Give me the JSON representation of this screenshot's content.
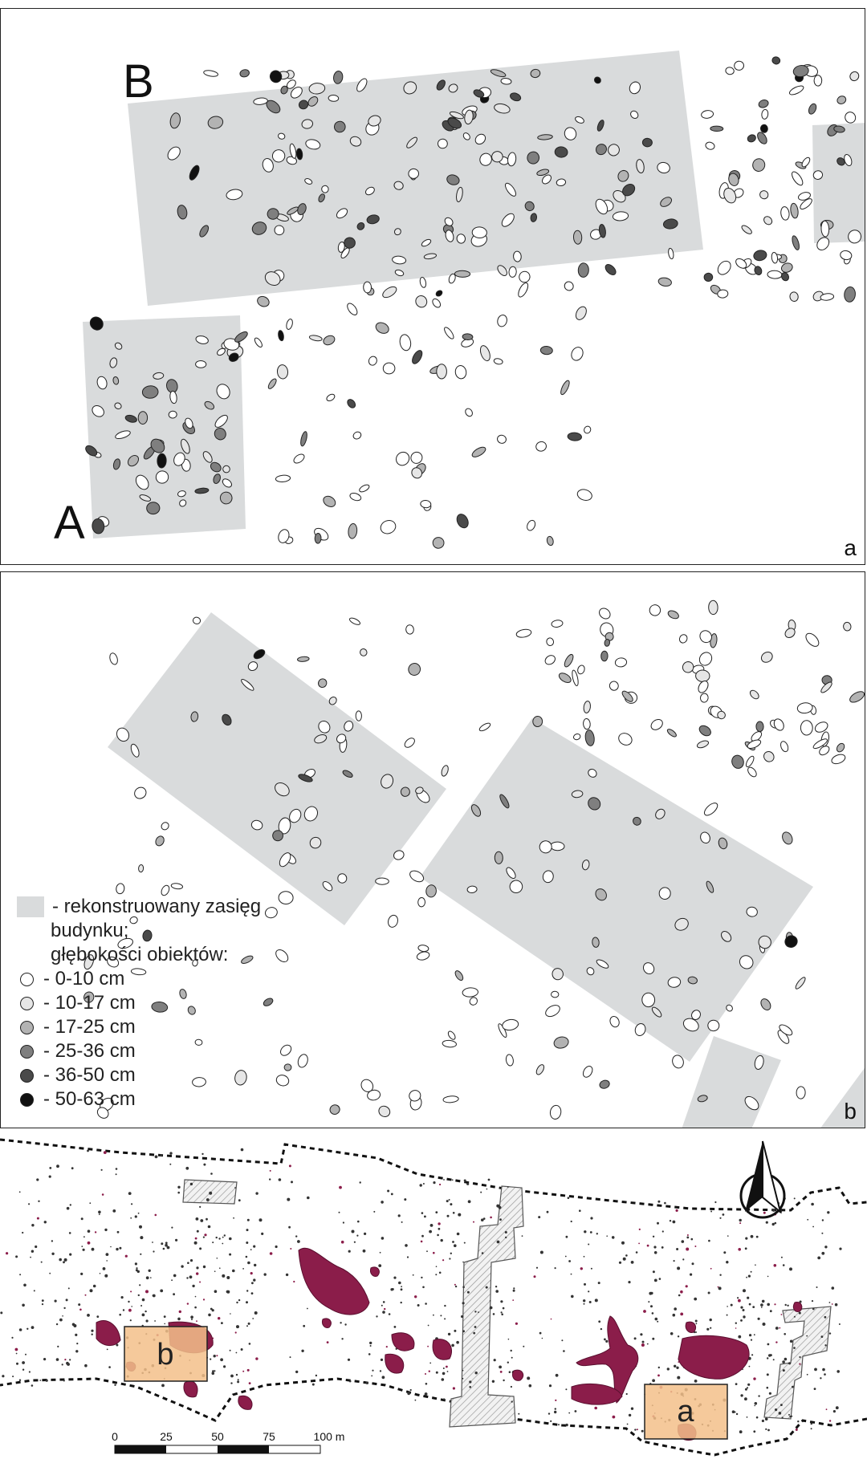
{
  "panel_a": {
    "label_b": "B",
    "label_a": "A",
    "corner_label": "a"
  },
  "panel_b": {
    "corner_label": "b"
  },
  "legend": {
    "building_label": "- rekonstruowany zasięg",
    "building_label_2": "budynku;",
    "depth_heading": "głębokości obiektów:",
    "classes": [
      {
        "label": "- 0-10 cm",
        "color": "#ffffff"
      },
      {
        "label": "- 10-17 cm",
        "color": "#e6e6e6"
      },
      {
        "label": "- 17-25 cm",
        "color": "#b3b3b3"
      },
      {
        "label": "- 25-36 cm",
        "color": "#7f7f7f"
      },
      {
        "label": "- 36-50 cm",
        "color": "#4a4a4a"
      },
      {
        "label": "- 50-63 cm",
        "color": "#111111"
      }
    ]
  },
  "site_plan": {
    "area_a_label": "a",
    "area_b_label": "b",
    "scale_ticks": [
      "0",
      "25",
      "50",
      "75",
      "100 m"
    ],
    "feature_color": "#8b1d4a",
    "highlight_color": "#f3c08a"
  },
  "colors": {
    "building_fill": "#d9dbdc",
    "feature_outline": "#222222"
  }
}
